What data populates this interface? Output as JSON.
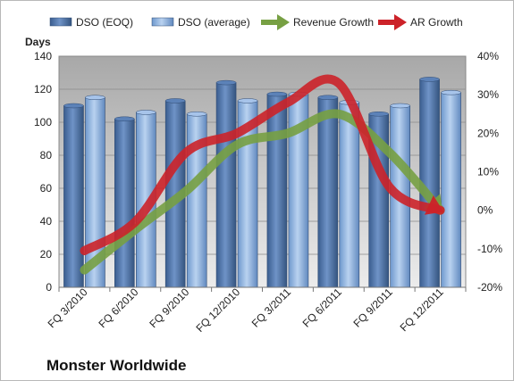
{
  "chart_data": {
    "type": "bar",
    "title": "Monster Worldwide",
    "categories": [
      "FQ 3/2010",
      "FQ 6/2010",
      "FQ 9/2010",
      "FQ 12/2010",
      "FQ 3/2011",
      "FQ 6/2011",
      "FQ 9/2011",
      "FQ 12/2011"
    ],
    "series": [
      {
        "name": "DSO (EOQ)",
        "type": "bar",
        "axis": "left",
        "color": "#4a6fa5",
        "values": [
          110,
          102,
          113,
          124,
          117,
          115,
          105,
          126
        ]
      },
      {
        "name": "DSO (average)",
        "type": "bar",
        "axis": "left",
        "color": "#8fb4e3",
        "values": [
          115,
          106,
          105,
          113,
          117,
          112,
          110,
          118
        ]
      },
      {
        "name": "Revenue Growth",
        "type": "line",
        "axis": "right",
        "unit": "%",
        "color": "#77a043",
        "values": [
          -15.5,
          -5,
          5,
          17,
          20,
          25,
          15,
          0
        ]
      },
      {
        "name": "AR Growth",
        "type": "line",
        "axis": "right",
        "unit": "%",
        "color": "#cc2229",
        "values": [
          -10.5,
          -3,
          15,
          20,
          28,
          33,
          6,
          0
        ]
      }
    ],
    "ylabel": "Days",
    "ylim": [
      0,
      140
    ],
    "yticks": [
      "0",
      "20",
      "40",
      "60",
      "80",
      "100",
      "120",
      "140"
    ],
    "y2lim": [
      -20,
      40
    ],
    "y2ticks": [
      "-20%",
      "-10%",
      "0%",
      "10%",
      "20%",
      "30%",
      "40%"
    ],
    "grid": true,
    "legend": "top"
  }
}
